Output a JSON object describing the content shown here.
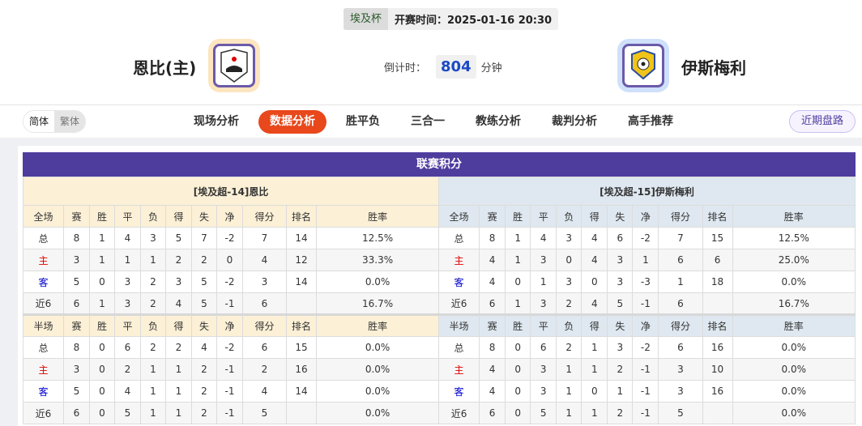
{
  "header": {
    "competition": "埃及杯",
    "kickoff": "开赛时间：2025-01-16 20:30",
    "home_team": "恩比(主)",
    "away_team": "伊斯梅利",
    "countdown_label": "倒计时：",
    "countdown_value": "804",
    "countdown_unit": "分钟"
  },
  "nav": {
    "lang": [
      "简体",
      "繁体"
    ],
    "tabs": [
      "现场分析",
      "数据分析",
      "胜平负",
      "三合一",
      "教练分析",
      "裁判分析",
      "高手推荐"
    ],
    "active_tab": "数据分析",
    "recent_button": "近期盘路"
  },
  "colors": {
    "accent": "#e8481b",
    "title_bar": "#4f3d9e",
    "home": "#e00000",
    "away": "#0000cc"
  },
  "standings": {
    "title": "联赛积分",
    "columns": [
      "赛",
      "胜",
      "平",
      "负",
      "得",
      "失",
      "净",
      "得分",
      "排名",
      "胜率"
    ],
    "teams": [
      {
        "label": "[埃及超-14]恩比",
        "full": {
          "header": "全场",
          "rows": [
            [
              "总",
              "8",
              "1",
              "4",
              "3",
              "5",
              "7",
              "-2",
              "7",
              "14",
              "12.5%"
            ],
            [
              "主",
              "3",
              "1",
              "1",
              "1",
              "2",
              "2",
              "0",
              "4",
              "12",
              "33.3%"
            ],
            [
              "客",
              "5",
              "0",
              "3",
              "2",
              "3",
              "5",
              "-2",
              "3",
              "14",
              "0.0%"
            ],
            [
              "近6",
              "6",
              "1",
              "3",
              "2",
              "4",
              "5",
              "-1",
              "6",
              "",
              "16.7%"
            ]
          ]
        },
        "half": {
          "header": "半场",
          "rows": [
            [
              "总",
              "8",
              "0",
              "6",
              "2",
              "2",
              "4",
              "-2",
              "6",
              "15",
              "0.0%"
            ],
            [
              "主",
              "3",
              "0",
              "2",
              "1",
              "1",
              "2",
              "-1",
              "2",
              "16",
              "0.0%"
            ],
            [
              "客",
              "5",
              "0",
              "4",
              "1",
              "1",
              "2",
              "-1",
              "4",
              "14",
              "0.0%"
            ],
            [
              "近6",
              "6",
              "0",
              "5",
              "1",
              "1",
              "2",
              "-1",
              "5",
              "",
              "0.0%"
            ]
          ]
        }
      },
      {
        "label": "[埃及超-15]伊斯梅利",
        "full": {
          "header": "全场",
          "rows": [
            [
              "总",
              "8",
              "1",
              "4",
              "3",
              "4",
              "6",
              "-2",
              "7",
              "15",
              "12.5%"
            ],
            [
              "主",
              "4",
              "1",
              "3",
              "0",
              "4",
              "3",
              "1",
              "6",
              "6",
              "25.0%"
            ],
            [
              "客",
              "4",
              "0",
              "1",
              "3",
              "0",
              "3",
              "-3",
              "1",
              "18",
              "0.0%"
            ],
            [
              "近6",
              "6",
              "1",
              "3",
              "2",
              "4",
              "5",
              "-1",
              "6",
              "",
              "16.7%"
            ]
          ]
        },
        "half": {
          "header": "半场",
          "rows": [
            [
              "总",
              "8",
              "0",
              "6",
              "2",
              "1",
              "3",
              "-2",
              "6",
              "16",
              "0.0%"
            ],
            [
              "主",
              "4",
              "0",
              "3",
              "1",
              "1",
              "2",
              "-1",
              "3",
              "10",
              "0.0%"
            ],
            [
              "客",
              "4",
              "0",
              "3",
              "1",
              "0",
              "1",
              "-1",
              "3",
              "16",
              "0.0%"
            ],
            [
              "近6",
              "6",
              "0",
              "5",
              "1",
              "1",
              "2",
              "-1",
              "5",
              "",
              "0.0%"
            ]
          ]
        }
      }
    ]
  }
}
